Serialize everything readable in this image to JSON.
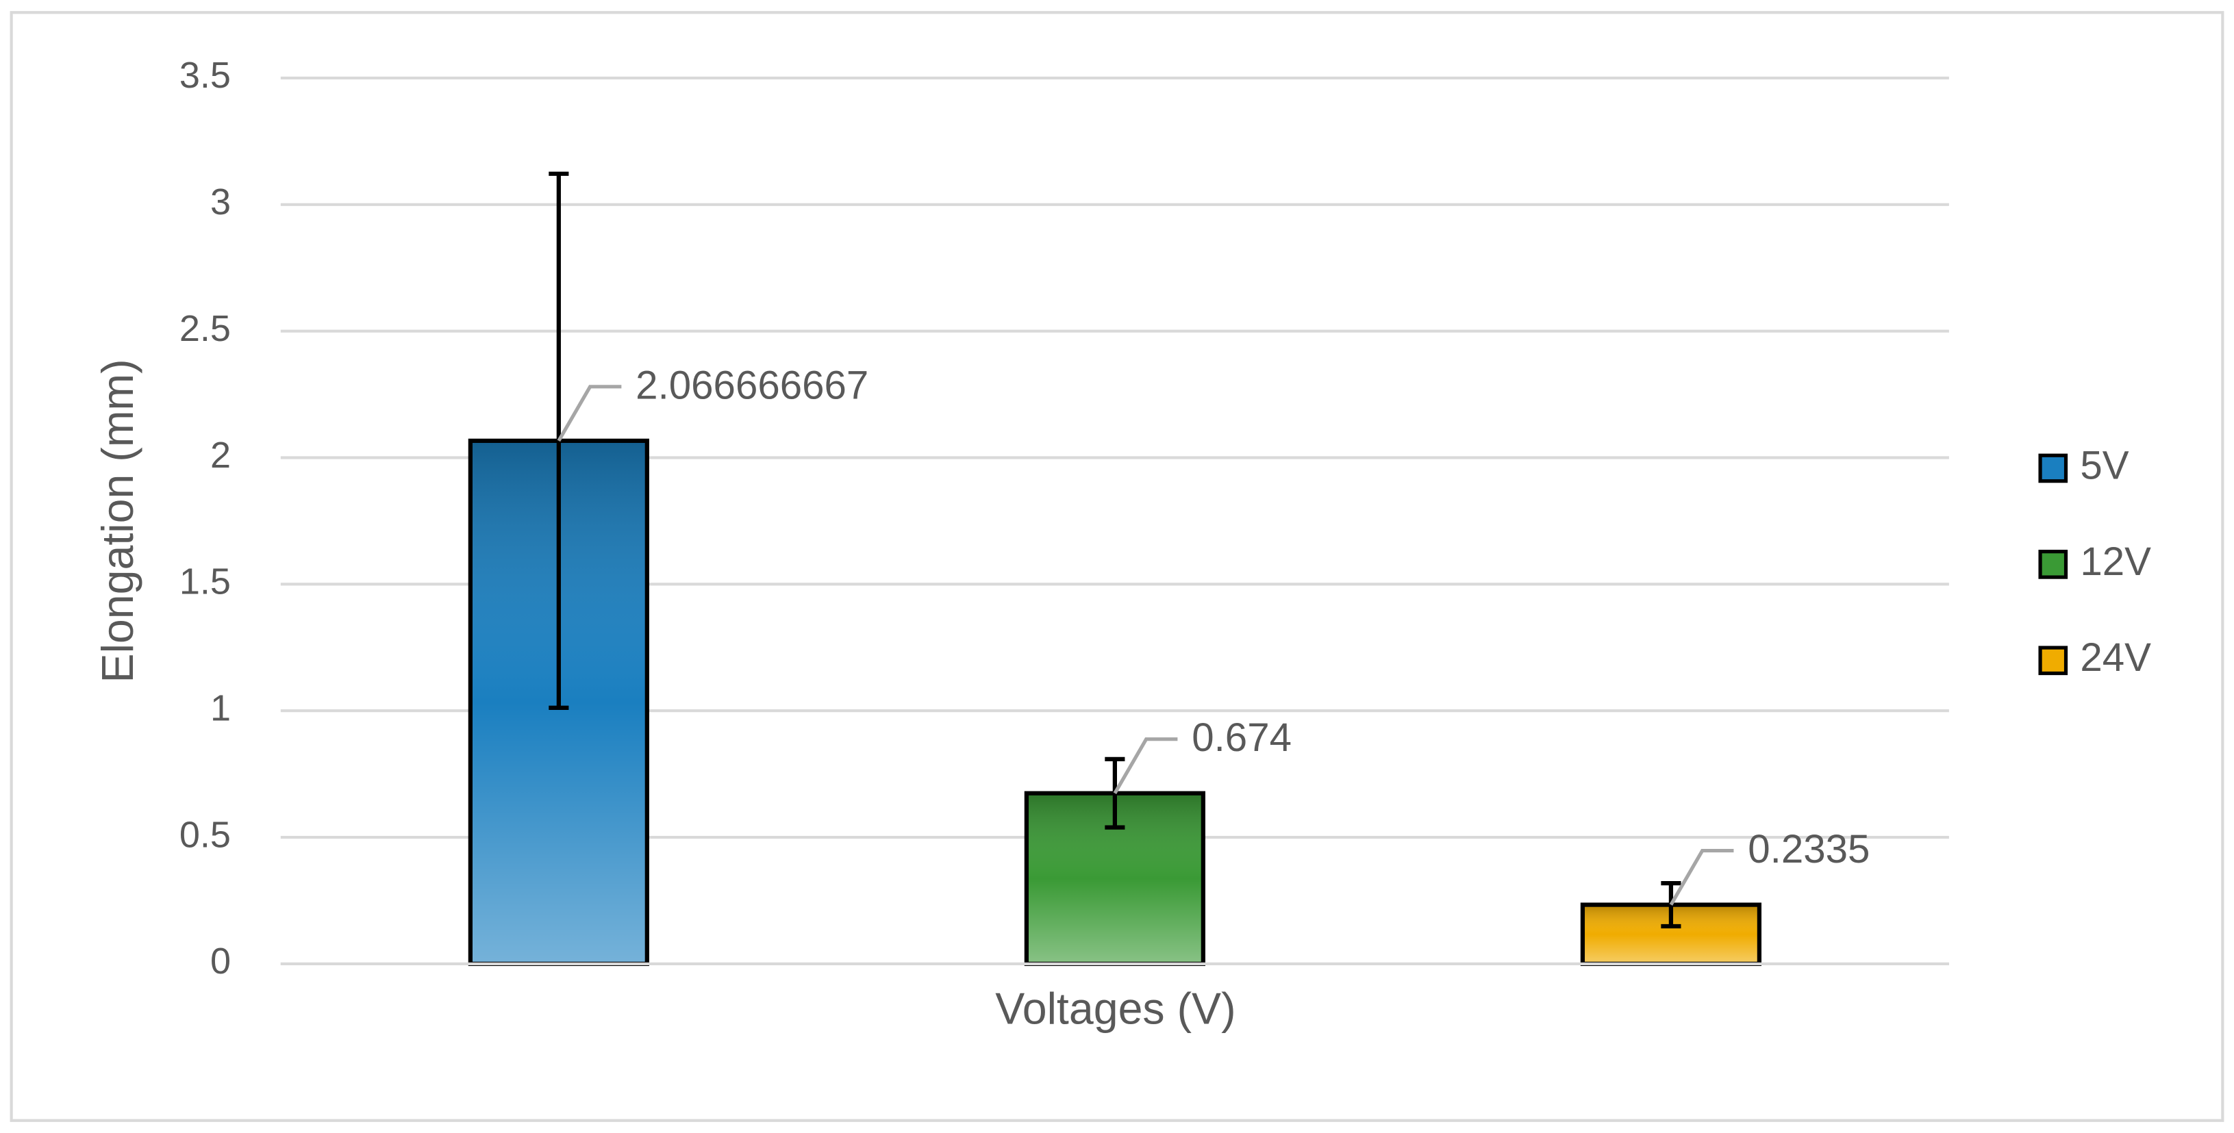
{
  "chart_data": {
    "type": "bar",
    "y_label": "Elongation (mm)",
    "x_label": "Voltages (V)",
    "categories": [
      null
    ],
    "series": [
      {
        "name": "5V",
        "color": "#1a7fc0",
        "values": [
          2.066666667
        ],
        "errors": [
          1.055
        ]
      },
      {
        "name": "12V",
        "color": "#3a9a35",
        "values": [
          0.674
        ],
        "errors": [
          0.135
        ]
      },
      {
        "name": "24V",
        "color": "#f0ac00",
        "values": [
          0.2335
        ],
        "errors": [
          0.085
        ]
      }
    ],
    "ylim": [
      0,
      3.5
    ],
    "yticks": [
      0,
      0.5,
      1,
      1.5,
      2,
      2.5,
      3,
      3.5
    ],
    "grid": true,
    "legend": "right"
  }
}
